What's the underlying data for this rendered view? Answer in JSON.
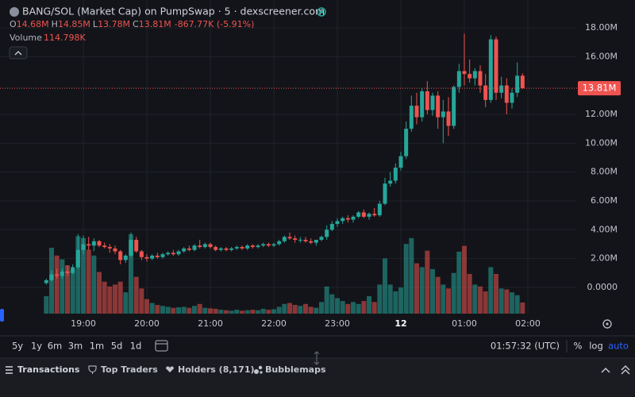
{
  "header": {
    "title": "BANG/SOL (Market Cap) on PumpSwap · 5 · dexscreener.com",
    "ohlc_letters": [
      "O",
      "H",
      "L",
      "C"
    ],
    "open_label": "14.68M",
    "high_label": "14.85M",
    "low_label": "13.78M",
    "close_label": "13.81M",
    "change": "-867.77K (-5.91%)",
    "volume_word": "Volume",
    "volume_value": "114.798K",
    "price_label": "13.81M"
  },
  "chart_data": {
    "type": "candlestick",
    "categories": [
      "18:25",
      "18:30",
      "18:35",
      "18:40",
      "18:45",
      "18:50",
      "18:55",
      "19:00",
      "19:05",
      "19:10",
      "19:15",
      "19:20",
      "19:25",
      "19:30",
      "19:35",
      "19:40",
      "19:45",
      "19:50",
      "19:55",
      "20:00",
      "20:05",
      "20:10",
      "20:15",
      "20:20",
      "20:25",
      "20:30",
      "20:35",
      "20:40",
      "20:45",
      "20:50",
      "20:55",
      "21:00",
      "21:05",
      "21:10",
      "21:15",
      "21:20",
      "21:25",
      "21:30",
      "21:35",
      "21:40",
      "21:45",
      "21:50",
      "21:55",
      "22:00",
      "22:05",
      "22:10",
      "22:15",
      "22:20",
      "22:25",
      "22:30",
      "22:35",
      "22:40",
      "22:45",
      "22:50",
      "22:55",
      "23:00",
      "23:05",
      "23:10",
      "23:15",
      "23:20",
      "23:25",
      "23:30",
      "23:35",
      "23:40",
      "23:45",
      "23:50",
      "23:55",
      "00:00",
      "00:05",
      "00:10",
      "00:15",
      "00:20",
      "00:25",
      "00:30",
      "00:35",
      "00:40",
      "00:45",
      "00:50",
      "00:55",
      "01:00",
      "01:05",
      "01:10",
      "01:15",
      "01:20",
      "01:25",
      "01:30",
      "01:35",
      "01:40",
      "01:45",
      "01:50",
      "01:55"
    ],
    "open": [
      0.3,
      0.5,
      0.9,
      0.8,
      1.1,
      1.0,
      1.4,
      2.6,
      3.0,
      2.9,
      3.2,
      2.9,
      2.8,
      2.7,
      2.5,
      1.9,
      2.2,
      3.3,
      2.5,
      2.1,
      2.0,
      2.2,
      2.1,
      2.3,
      2.4,
      2.3,
      2.5,
      2.7,
      2.6,
      2.9,
      2.8,
      3.0,
      2.8,
      2.6,
      2.7,
      2.6,
      2.7,
      2.8,
      2.7,
      2.9,
      2.8,
      2.9,
      3.0,
      2.9,
      3.0,
      3.2,
      3.5,
      3.4,
      3.3,
      3.3,
      3.2,
      3.1,
      3.3,
      3.5,
      4.0,
      4.4,
      4.6,
      4.8,
      4.7,
      4.9,
      5.2,
      4.9,
      5.1,
      5.0,
      5.8,
      7.2,
      7.4,
      8.3,
      9.1,
      11.0,
      12.6,
      11.8,
      13.6,
      12.3,
      13.3,
      11.8,
      12.2,
      11.2,
      13.9,
      15.0,
      14.8,
      14.5,
      15.0,
      14.0,
      13.0,
      17.2,
      13.5,
      14.0,
      12.8,
      13.5,
      14.68
    ],
    "high": [
      0.6,
      1.2,
      1.3,
      1.3,
      1.5,
      1.6,
      3.7,
      3.6,
      3.5,
      3.4,
      3.3,
      3.1,
      3.0,
      2.9,
      2.6,
      2.3,
      3.8,
      3.5,
      2.6,
      2.3,
      2.3,
      2.4,
      2.4,
      2.5,
      2.6,
      2.6,
      2.8,
      2.9,
      3.0,
      3.3,
      3.1,
      3.1,
      2.9,
      2.8,
      2.8,
      2.8,
      2.9,
      2.9,
      3.0,
      3.0,
      3.0,
      3.1,
      3.1,
      3.1,
      3.3,
      3.6,
      3.8,
      3.6,
      3.5,
      3.5,
      3.4,
      3.3,
      3.6,
      4.3,
      4.6,
      4.8,
      4.9,
      5.0,
      5.0,
      5.3,
      5.4,
      5.2,
      5.5,
      6.0,
      7.6,
      8.0,
      8.6,
      9.4,
      11.5,
      13.3,
      13.5,
      13.8,
      14.3,
      13.5,
      13.6,
      13.0,
      13.2,
      14.0,
      15.5,
      17.6,
      15.8,
      15.2,
      15.4,
      14.8,
      17.5,
      17.4,
      14.6,
      14.5,
      13.8,
      15.6,
      14.85
    ],
    "low": [
      0.2,
      0.4,
      0.6,
      0.6,
      0.8,
      0.9,
      1.3,
      2.3,
      2.6,
      2.5,
      2.8,
      2.7,
      2.4,
      2.3,
      1.6,
      1.7,
      2.1,
      2.4,
      1.9,
      1.8,
      1.9,
      2.0,
      2.0,
      2.2,
      2.2,
      2.2,
      2.4,
      2.5,
      2.5,
      2.7,
      2.7,
      2.7,
      2.5,
      2.5,
      2.5,
      2.5,
      2.6,
      2.6,
      2.6,
      2.7,
      2.7,
      2.8,
      2.8,
      2.8,
      2.9,
      3.1,
      3.3,
      3.1,
      3.1,
      3.1,
      3.0,
      2.9,
      3.2,
      3.3,
      3.9,
      4.2,
      4.4,
      4.5,
      4.5,
      4.8,
      4.8,
      4.7,
      4.9,
      4.9,
      5.7,
      7.0,
      7.2,
      8.1,
      8.9,
      10.8,
      11.3,
      11.5,
      12.0,
      11.9,
      11.0,
      10.0,
      10.5,
      11.0,
      13.5,
      14.0,
      14.2,
      14.0,
      13.5,
      12.5,
      12.8,
      13.0,
      13.1,
      12.0,
      12.4,
      13.2,
      13.78
    ],
    "close": [
      0.5,
      0.9,
      0.8,
      1.1,
      1.0,
      1.4,
      2.6,
      3.0,
      2.9,
      3.2,
      2.9,
      2.8,
      2.7,
      2.5,
      1.9,
      2.2,
      3.3,
      2.5,
      2.1,
      2.0,
      2.2,
      2.1,
      2.3,
      2.4,
      2.3,
      2.5,
      2.7,
      2.6,
      2.9,
      2.8,
      3.0,
      2.8,
      2.6,
      2.7,
      2.6,
      2.7,
      2.8,
      2.7,
      2.9,
      2.8,
      2.9,
      3.0,
      2.9,
      3.0,
      3.2,
      3.5,
      3.4,
      3.3,
      3.3,
      3.2,
      3.1,
      3.3,
      3.5,
      4.0,
      4.4,
      4.6,
      4.8,
      4.7,
      4.9,
      5.2,
      4.9,
      5.1,
      5.0,
      5.8,
      7.2,
      7.4,
      8.3,
      9.1,
      11.0,
      12.6,
      11.8,
      13.6,
      12.3,
      13.3,
      11.8,
      12.2,
      11.2,
      13.9,
      15.0,
      14.8,
      14.5,
      15.0,
      14.0,
      13.0,
      17.2,
      13.5,
      14.0,
      12.8,
      13.5,
      14.68,
      13.81
    ],
    "volume": [
      180,
      680,
      600,
      560,
      500,
      450,
      800,
      780,
      660,
      600,
      430,
      330,
      280,
      300,
      330,
      220,
      820,
      380,
      260,
      150,
      110,
      90,
      80,
      70,
      60,
      65,
      70,
      60,
      80,
      100,
      60,
      55,
      50,
      40,
      35,
      30,
      40,
      30,
      35,
      40,
      35,
      50,
      40,
      45,
      70,
      100,
      110,
      90,
      80,
      100,
      70,
      60,
      120,
      280,
      200,
      160,
      130,
      100,
      120,
      100,
      130,
      180,
      120,
      300,
      570,
      300,
      230,
      270,
      720,
      780,
      520,
      480,
      650,
      460,
      380,
      300,
      260,
      420,
      640,
      700,
      410,
      300,
      280,
      230,
      480,
      410,
      260,
      250,
      220,
      190,
      114.798
    ],
    "up_color": "#26a69a",
    "down_color": "#ef5350",
    "ylim": [
      -1.82,
      19.93
    ],
    "yticks": [
      {
        "value": 0,
        "label": "0.0000"
      },
      {
        "value": 2,
        "label": "2.00M"
      },
      {
        "value": 4,
        "label": "4.00M"
      },
      {
        "value": 6,
        "label": "6.00M"
      },
      {
        "value": 8,
        "label": "8.00M"
      },
      {
        "value": 10,
        "label": "10.00M"
      },
      {
        "value": 12,
        "label": "12.00M"
      },
      {
        "value": 16,
        "label": "16.00M"
      },
      {
        "value": 18,
        "label": "18.00M"
      }
    ],
    "xticks": [
      "19:00",
      "20:00",
      "21:00",
      "22:00",
      "23:00",
      {
        "value": "00:00",
        "label": "12"
      },
      "01:00",
      "02:00"
    ],
    "grid": true
  },
  "toolbar": {
    "ranges": [
      "5y",
      "1y",
      "6m",
      "3m",
      "1m",
      "5d",
      "1d"
    ],
    "clock": "01:57:32 (UTC)",
    "percent": "%",
    "log": "log",
    "auto": "auto"
  },
  "tabs": [
    "Transactions",
    "Top Traders",
    "Holders (8,171)",
    "Bubblemaps"
  ]
}
